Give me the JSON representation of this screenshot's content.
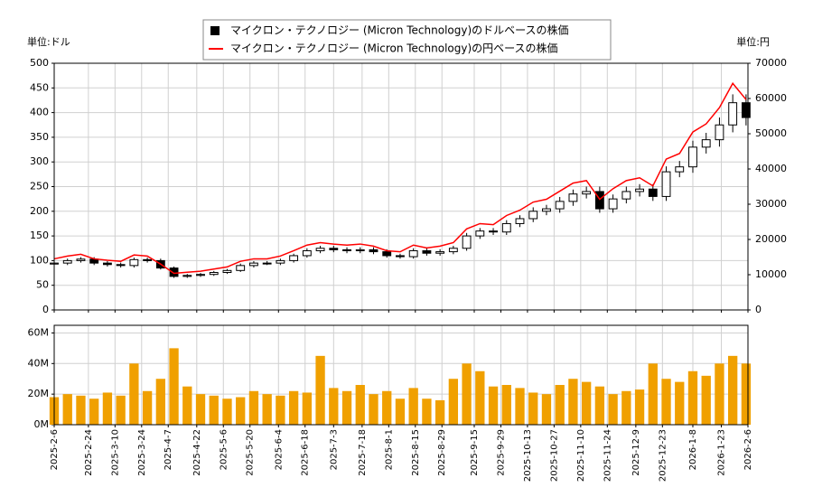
{
  "chart_data": [
    {
      "type": "candlestick",
      "left_unit": "単位:ドル",
      "right_unit": "単位:円",
      "x": [
        "2025-2-6",
        "2025-2-13",
        "2025-2-20",
        "2025-2-27",
        "2025-3-6",
        "2025-3-13",
        "2025-3-20",
        "2025-3-27",
        "2025-4-3",
        "2025-4-10",
        "2025-4-17",
        "2025-4-24",
        "2025-5-1",
        "2025-5-8",
        "2025-5-15",
        "2025-5-22",
        "2025-5-29",
        "2025-6-5",
        "2025-6-12",
        "2025-6-19",
        "2025-6-26",
        "2025-7-3",
        "2025-7-10",
        "2025-7-17",
        "2025-7-24",
        "2025-7-31",
        "2025-8-7",
        "2025-8-14",
        "2025-8-21",
        "2025-8-28",
        "2025-9-4",
        "2025-9-11",
        "2025-9-18",
        "2025-9-25",
        "2025-10-2",
        "2025-10-9",
        "2025-10-16",
        "2025-10-23",
        "2025-10-30",
        "2025-11-6",
        "2025-11-13",
        "2025-11-20",
        "2025-11-27",
        "2025-12-4",
        "2025-12-11",
        "2025-12-18",
        "2025-12-25",
        "2026-1-1",
        "2026-1-8",
        "2026-1-15",
        "2026-1-22",
        "2026-1-29",
        "2026-2-5"
      ],
      "xlim": [
        "2025-2-6",
        "2026-2-6"
      ],
      "series": [
        {
          "name": "マイクロン・テクノロジー (Micron Technology)のドルベースの株価",
          "color": "#000000",
          "open": [
            93,
            95,
            100,
            103,
            95,
            92,
            90,
            102,
            100,
            85,
            68,
            70,
            72,
            76,
            80,
            90,
            95,
            95,
            100,
            110,
            120,
            125,
            122,
            120,
            122,
            118,
            110,
            108,
            120,
            115,
            118,
            125,
            150,
            160,
            158,
            175,
            185,
            200,
            205,
            220,
            235,
            240,
            205,
            225,
            240,
            245,
            230,
            280,
            290,
            330,
            345,
            375,
            420
          ],
          "high": [
            99,
            104,
            107,
            107,
            99,
            96,
            106,
            106,
            104,
            88,
            73,
            75,
            79,
            83,
            94,
            99,
            99,
            104,
            114,
            125,
            130,
            130,
            127,
            127,
            127,
            123,
            114,
            125,
            125,
            123,
            130,
            156,
            166,
            166,
            182,
            192,
            208,
            213,
            229,
            244,
            250,
            250,
            234,
            250,
            255,
            255,
            291,
            302,
            343,
            359,
            390,
            437,
            437
          ],
          "low": [
            89,
            91,
            96,
            91,
            88,
            86,
            86,
            96,
            82,
            65,
            65,
            67,
            69,
            73,
            77,
            86,
            91,
            91,
            96,
            106,
            115,
            117,
            115,
            115,
            113,
            106,
            104,
            104,
            110,
            110,
            113,
            120,
            144,
            152,
            152,
            168,
            178,
            192,
            197,
            211,
            226,
            197,
            197,
            216,
            230,
            221,
            221,
            269,
            278,
            317,
            331,
            360,
            374
          ],
          "close": [
            95,
            100,
            103,
            95,
            92,
            90,
            102,
            100,
            85,
            68,
            70,
            72,
            76,
            80,
            90,
            95,
            95,
            100,
            110,
            120,
            125,
            122,
            120,
            122,
            118,
            110,
            108,
            120,
            115,
            118,
            125,
            150,
            160,
            158,
            175,
            185,
            200,
            205,
            220,
            235,
            240,
            205,
            225,
            240,
            245,
            230,
            280,
            290,
            330,
            345,
            375,
            420,
            390
          ]
        },
        {
          "name": "マイクロン・テクノロジー (Micron Technology)の円ベースの株価",
          "color": "#ff0000",
          "axis": "y2",
          "values": [
            14500,
            15300,
            15800,
            14500,
            14100,
            13800,
            15600,
            15300,
            13000,
            10400,
            10700,
            11000,
            11600,
            12200,
            13800,
            14500,
            14500,
            15300,
            16800,
            18400,
            19100,
            18700,
            18400,
            18700,
            18100,
            16800,
            16500,
            18400,
            17600,
            18100,
            19100,
            23000,
            24500,
            24200,
            26800,
            28300,
            30600,
            31400,
            33700,
            36000,
            36700,
            31400,
            34400,
            36700,
            37500,
            35200,
            42800,
            44400,
            50500,
            52800,
            57400,
            64300,
            59700
          ]
        }
      ],
      "ylim": [
        0,
        500
      ],
      "yticks": [
        0,
        50,
        100,
        150,
        200,
        250,
        300,
        350,
        400,
        450,
        500
      ],
      "y2lim": [
        0,
        70000
      ],
      "y2ticks": [
        0,
        10000,
        20000,
        30000,
        40000,
        50000,
        60000,
        70000
      ],
      "grid": true
    },
    {
      "type": "bar",
      "color": "#f0a000",
      "x": [
        "2025-2-6",
        "2025-2-13",
        "2025-2-20",
        "2025-2-27",
        "2025-3-6",
        "2025-3-13",
        "2025-3-20",
        "2025-3-27",
        "2025-4-3",
        "2025-4-10",
        "2025-4-17",
        "2025-4-24",
        "2025-5-1",
        "2025-5-8",
        "2025-5-15",
        "2025-5-22",
        "2025-5-29",
        "2025-6-5",
        "2025-6-12",
        "2025-6-19",
        "2025-6-26",
        "2025-7-3",
        "2025-7-10",
        "2025-7-17",
        "2025-7-24",
        "2025-7-31",
        "2025-8-7",
        "2025-8-14",
        "2025-8-21",
        "2025-8-28",
        "2025-9-4",
        "2025-9-11",
        "2025-9-18",
        "2025-9-25",
        "2025-10-2",
        "2025-10-9",
        "2025-10-16",
        "2025-10-23",
        "2025-10-30",
        "2025-11-6",
        "2025-11-13",
        "2025-11-20",
        "2025-11-27",
        "2025-12-4",
        "2025-12-11",
        "2025-12-18",
        "2025-12-25",
        "2026-1-1",
        "2026-1-8",
        "2026-1-15",
        "2026-1-22",
        "2026-1-29",
        "2026-2-5"
      ],
      "values": [
        18000000,
        20000000,
        19000000,
        17000000,
        21000000,
        19000000,
        40000000,
        22000000,
        30000000,
        50000000,
        25000000,
        20000000,
        19000000,
        17000000,
        18000000,
        22000000,
        20000000,
        19000000,
        22000000,
        21000000,
        45000000,
        24000000,
        22000000,
        26000000,
        20000000,
        22000000,
        17000000,
        24000000,
        17000000,
        16000000,
        30000000,
        40000000,
        35000000,
        25000000,
        26000000,
        24000000,
        21000000,
        20000000,
        26000000,
        30000000,
        28000000,
        25000000,
        20000000,
        22000000,
        23000000,
        40000000,
        30000000,
        28000000,
        35000000,
        32000000,
        40000000,
        45000000,
        40000000
      ],
      "xlim": [
        "2025-2-6",
        "2026-2-6"
      ],
      "xticks": [
        "2025-2-6",
        "2025-2-24",
        "2025-3-10",
        "2025-3-24",
        "2025-4-7",
        "2025-4-22",
        "2025-5-6",
        "2025-5-20",
        "2025-6-4",
        "2025-6-18",
        "2025-7-3",
        "2025-7-18",
        "2025-8-1",
        "2025-8-15",
        "2025-8-29",
        "2025-9-15",
        "2025-9-29",
        "2025-10-13",
        "2025-10-27",
        "2025-11-10",
        "2025-11-24",
        "2025-12-9",
        "2025-12-23",
        "2026-1-8",
        "2026-1-23",
        "2026-2-6"
      ],
      "ylim": [
        0,
        65000000
      ],
      "yticks": [
        {
          "value": 0,
          "label": "0M"
        },
        {
          "value": 20000000,
          "label": "20M"
        },
        {
          "value": 40000000,
          "label": "40M"
        },
        {
          "value": 60000000,
          "label": "60M"
        }
      ],
      "grid": true
    }
  ]
}
